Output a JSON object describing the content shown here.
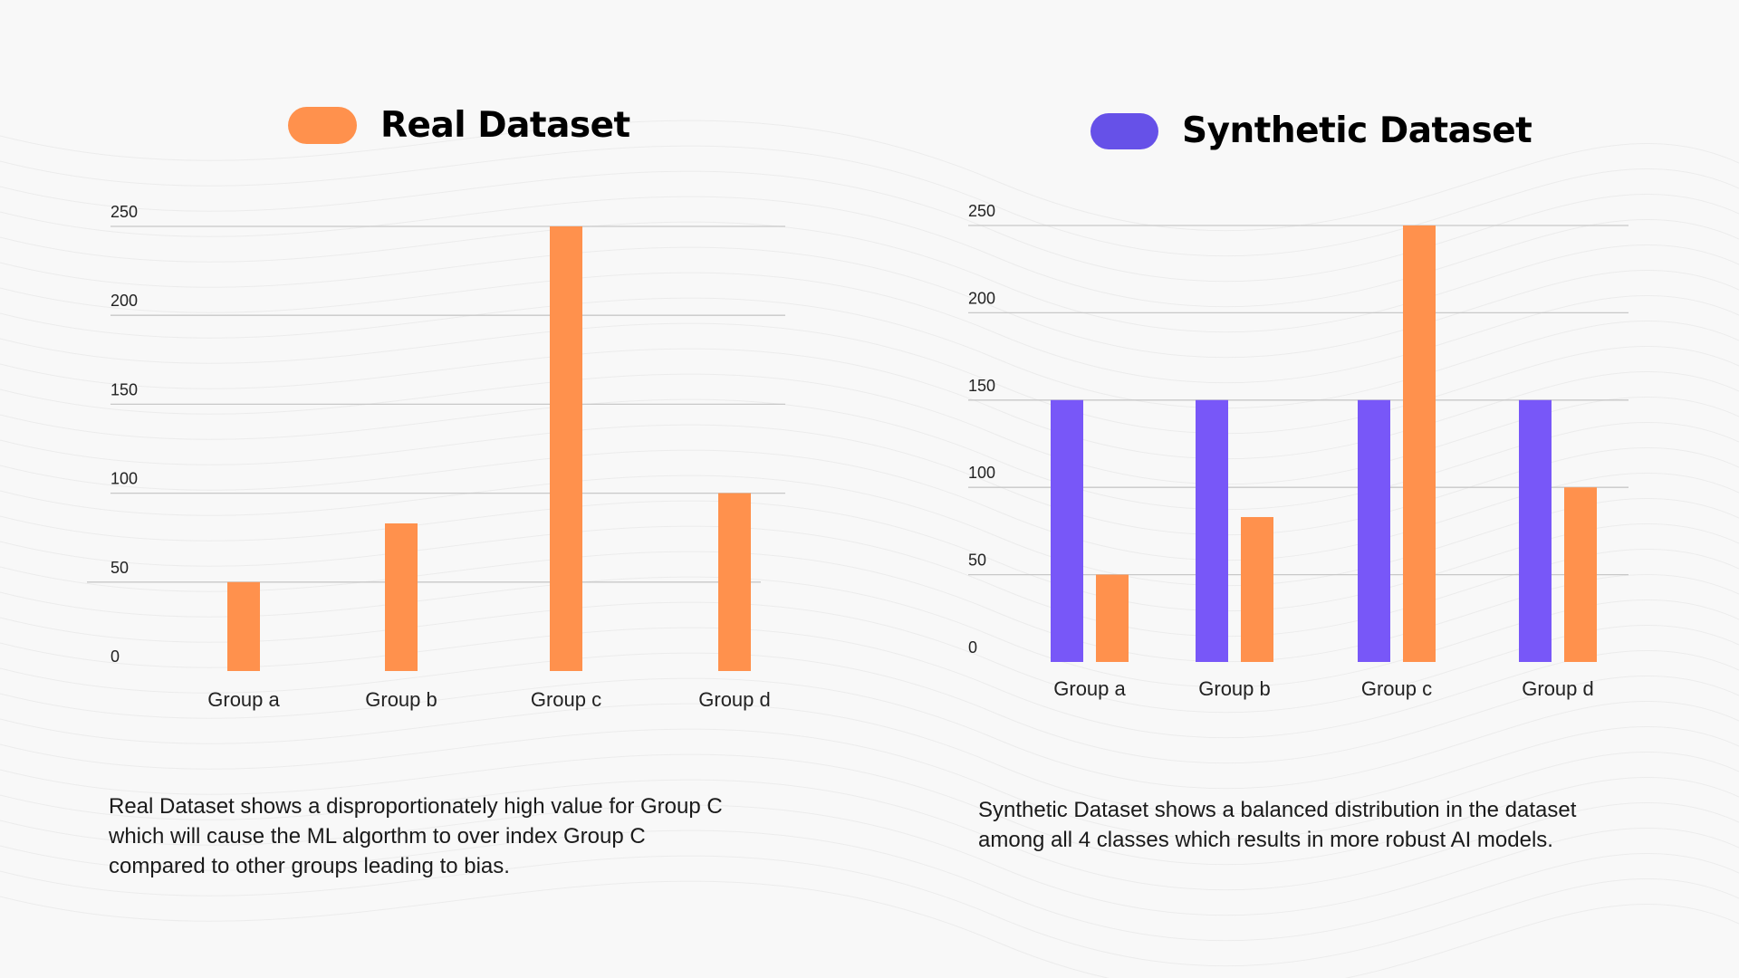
{
  "colors": {
    "real": "#FF914D",
    "synthetic": "#7857F8",
    "synthetic_legend": "#6651E8",
    "grid": "#c8c8c8",
    "background": "#f8f8f8"
  },
  "chart_data": [
    {
      "type": "bar",
      "title": "Real Dataset",
      "categories": [
        "Group a",
        "Group b",
        "Group c",
        "Group d"
      ],
      "series": [
        {
          "color": "#FF914D",
          "values": [
            50,
            83,
            250,
            100
          ]
        }
      ],
      "yticks": [
        "0",
        "50",
        "100",
        "150",
        "200",
        "250"
      ],
      "ylim": [
        0,
        250
      ],
      "grid": true,
      "legend": "top"
    },
    {
      "type": "bar",
      "title": "Synthetic Dataset",
      "categories": [
        "Group a",
        "Group b",
        "Group c",
        "Group d"
      ],
      "series": [
        {
          "color": "#7857F8",
          "values": [
            150,
            150,
            150,
            150
          ]
        },
        {
          "color": "#FF914D",
          "values": [
            50,
            83,
            250,
            100
          ]
        }
      ],
      "yticks": [
        "0",
        "50",
        "100",
        "150",
        "200",
        "250"
      ],
      "ylim": [
        0,
        250
      ],
      "grid": true,
      "legend": "top"
    }
  ],
  "descriptions": {
    "real": [
      "Real Dataset shows a disproportionately high value for Group C",
      "which will cause the ML algorthm to over index Group C",
      "compared to other groups leading to bias."
    ],
    "synthetic": [
      "Synthetic Dataset shows a balanced distribution in the dataset",
      "among all 4 classes which results in more robust AI models."
    ]
  }
}
